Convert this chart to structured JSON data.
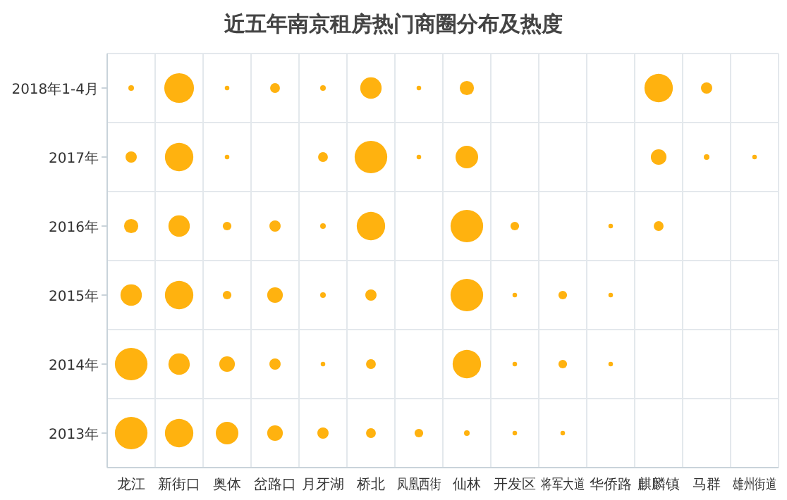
{
  "chart_data": {
    "type": "bubble",
    "title": "近五年南京租房热门商圈分布及热度",
    "grid": true,
    "categories": [
      "龙江",
      "新街口",
      "奥体",
      "岔路口",
      "月牙湖",
      "桥北",
      "凤凰西街",
      "仙林",
      "开发区",
      "将军大道",
      "华侨路",
      "麒麟镇",
      "马群",
      "雄州街道"
    ],
    "ylim": [
      2012.5,
      2018.5
    ],
    "yticks": [
      {
        "value": 2018,
        "label": "2018年1-4月"
      },
      {
        "value": 2017,
        "label": "2017年"
      },
      {
        "value": 2016,
        "label": "2016年"
      },
      {
        "value": 2015,
        "label": "2015年"
      },
      {
        "value": 2014,
        "label": "2014年"
      },
      {
        "value": 2013,
        "label": "2013年"
      }
    ],
    "series": [
      {
        "color": "#ffb20f",
        "x": [
          "龙江",
          "新街口",
          "奥体",
          "岔路口",
          "月牙湖",
          "桥北",
          "凤凰西街",
          "仙林",
          "麒麟镇",
          "马群",
          "龙江",
          "新街口",
          "奥体",
          "月牙湖",
          "桥北",
          "凤凰西街",
          "仙林",
          "麒麟镇",
          "马群",
          "雄州街道",
          "龙江",
          "新街口",
          "奥体",
          "岔路口",
          "月牙湖",
          "桥北",
          "仙林",
          "开发区",
          "华侨路",
          "麒麟镇",
          "龙江",
          "新街口",
          "奥体",
          "岔路口",
          "月牙湖",
          "桥北",
          "仙林",
          "开发区",
          "将军大道",
          "华侨路",
          "龙江",
          "新街口",
          "奥体",
          "岔路口",
          "月牙湖",
          "桥北",
          "仙林",
          "开发区",
          "将军大道",
          "华侨路",
          "龙江",
          "新街口",
          "奥体",
          "岔路口",
          "月牙湖",
          "桥北",
          "凤凰西街",
          "仙林",
          "开发区",
          "将军大道"
        ],
        "values": [
          2018,
          2018,
          2018,
          2018,
          2018,
          2018,
          2018,
          2018,
          2018,
          2018,
          2017,
          2017,
          2017,
          2017,
          2017,
          2017,
          2017,
          2017,
          2017,
          2017,
          2016,
          2016,
          2016,
          2016,
          2016,
          2016,
          2016,
          2016,
          2016,
          2016,
          2015,
          2015,
          2015,
          2015,
          2015,
          2015,
          2015,
          2015,
          2015,
          2015,
          2014,
          2014,
          2014,
          2014,
          2014,
          2014,
          2014,
          2014,
          2014,
          2014,
          2013,
          2013,
          2013,
          2013,
          2013,
          2013,
          2013,
          2013,
          2013,
          2013
        ],
        "sizes": [
          0.03,
          0.83,
          0.02,
          0.09,
          0.03,
          0.43,
          0.02,
          0.19,
          0.76,
          0.12,
          0.12,
          0.76,
          0.02,
          0.09,
          1,
          0.02,
          0.48,
          0.23,
          0.03,
          0.02,
          0.19,
          0.43,
          0.07,
          0.12,
          0.03,
          0.76,
          1,
          0.07,
          0.02,
          0.09,
          0.43,
          0.76,
          0.07,
          0.23,
          0.03,
          0.12,
          1,
          0.02,
          0.07,
          0.02,
          1,
          0.43,
          0.23,
          0.12,
          0.02,
          0.09,
          0.76,
          0.02,
          0.07,
          0.02,
          1,
          0.76,
          0.48,
          0.23,
          0.12,
          0.09,
          0.07,
          0.03,
          0.02,
          0.02
        ]
      }
    ]
  }
}
